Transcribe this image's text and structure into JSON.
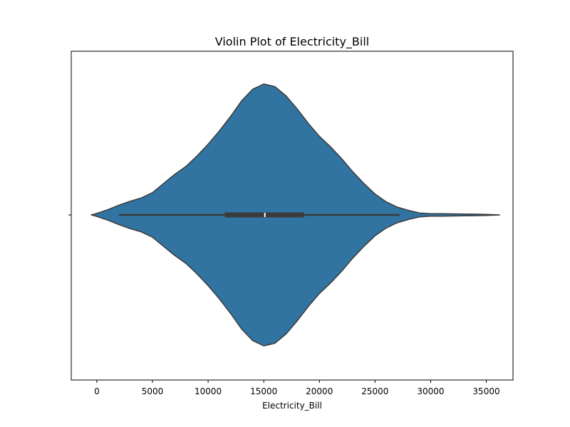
{
  "chart_data": {
    "type": "violin",
    "title": "Violin Plot of Electricity_Bill",
    "xlabel": "Electricity_Bill",
    "ylabel": "",
    "xlim": [
      -2300,
      37400
    ],
    "xticks": [
      0,
      5000,
      10000,
      15000,
      20000,
      25000,
      30000,
      35000
    ],
    "xtick_labels": [
      "0",
      "5000",
      "10000",
      "15000",
      "20000",
      "25000",
      "30000",
      "35000"
    ],
    "grid": false,
    "colors": {
      "violin_fill": "#3274a1",
      "violin_edge": "#3b3b3b",
      "box": "#3b3b3b",
      "median": "#ffffff",
      "axes": "#000000"
    },
    "summary": {
      "whisker_low": 2000,
      "q1": 11500,
      "median": 15100,
      "q3": 18600,
      "whisker_high": 27200
    },
    "density_profile": {
      "x": [
        -500,
        0,
        1000,
        2000,
        3000,
        4000,
        5000,
        6000,
        7000,
        8000,
        9000,
        10000,
        11000,
        12000,
        13000,
        14000,
        15000,
        16000,
        17000,
        18000,
        19000,
        20000,
        21000,
        22000,
        23000,
        24000,
        25000,
        26000,
        27000,
        28000,
        29000,
        30000,
        31000,
        32000,
        33000,
        34000,
        35000,
        36200
      ],
      "relative_width": [
        0.0,
        0.012,
        0.04,
        0.075,
        0.105,
        0.13,
        0.17,
        0.24,
        0.31,
        0.37,
        0.45,
        0.54,
        0.64,
        0.75,
        0.87,
        0.96,
        1.0,
        0.98,
        0.91,
        0.81,
        0.7,
        0.6,
        0.52,
        0.43,
        0.33,
        0.24,
        0.16,
        0.1,
        0.06,
        0.035,
        0.015,
        0.01,
        0.009,
        0.008,
        0.007,
        0.006,
        0.004,
        0.0
      ]
    }
  }
}
